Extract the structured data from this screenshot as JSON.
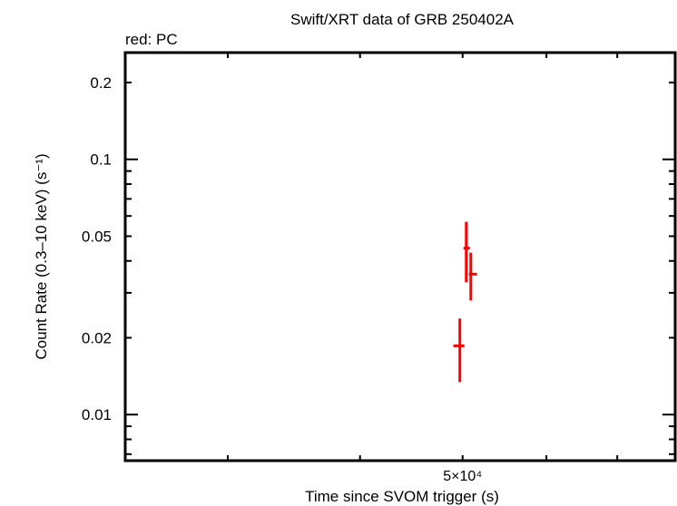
{
  "chart_data": {
    "type": "scatter",
    "title": "Swift/XRT data of GRB 250402A",
    "subtitle": "red: PC",
    "xlabel": "Time since SVOM trigger (s)",
    "ylabel": "Count Rate (0.3–10 keV) (s⁻¹)",
    "xscale": "log",
    "yscale": "log",
    "xlim": [
      24000,
      79400
    ],
    "ylim": [
      0.0066,
      0.262
    ],
    "grid": false,
    "legend": "none",
    "x_tick_labels": [
      {
        "value": 50000,
        "label": "5×10⁴"
      }
    ],
    "x_minor_ticks": [
      30000,
      40000,
      50000,
      60000,
      70000
    ],
    "y_tick_labels": [
      {
        "value": 0.2,
        "label": "0.2"
      },
      {
        "value": 0.1,
        "label": "0.1"
      },
      {
        "value": 0.05,
        "label": "0.05"
      },
      {
        "value": 0.02,
        "label": "0.02"
      },
      {
        "value": 0.01,
        "label": "0.01"
      }
    ],
    "y_major_ticks": [
      0.1,
      0.01
    ],
    "y_minor_ticks": [
      0.2,
      0.09,
      0.08,
      0.07,
      0.06,
      0.05,
      0.04,
      0.03,
      0.02,
      0.009,
      0.008,
      0.007
    ],
    "series": [
      {
        "name": "PC",
        "color": "#ff0000",
        "points": [
          {
            "x": 49700,
            "xerr_lo": 49000,
            "xerr_hi": 50200,
            "y": 0.0186,
            "yerr_lo": 0.0134,
            "yerr_hi": 0.0238
          },
          {
            "x": 50400,
            "xerr_lo": 50100,
            "xerr_hi": 50800,
            "y": 0.0449,
            "yerr_lo": 0.033,
            "yerr_hi": 0.0569
          },
          {
            "x": 50900,
            "xerr_lo": 50700,
            "xerr_hi": 51600,
            "y": 0.0355,
            "yerr_lo": 0.028,
            "yerr_hi": 0.0431
          }
        ]
      }
    ]
  }
}
